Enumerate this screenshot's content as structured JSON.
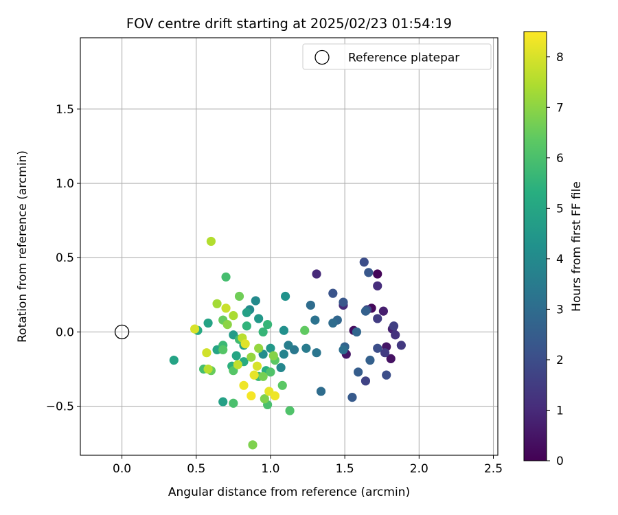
{
  "chart_data": {
    "type": "scatter",
    "title": "FOV centre drift starting at 2025/02/23 01:54:19",
    "xlabel": "Angular distance from reference (arcmin)",
    "ylabel": "Rotation from reference (arcmin)",
    "xlim": [
      -0.28,
      2.53
    ],
    "ylim": [
      -0.83,
      1.98
    ],
    "xticks": [
      0.0,
      0.5,
      1.0,
      1.5,
      2.0,
      2.5
    ],
    "xtick_labels": [
      "0.0",
      "0.5",
      "1.0",
      "1.5",
      "2.0",
      "2.5"
    ],
    "yticks": [
      -0.5,
      0.0,
      0.5,
      1.0,
      1.5
    ],
    "ytick_labels": [
      "−0.5",
      "0.0",
      "0.5",
      "1.0",
      "1.5"
    ],
    "grid": true,
    "legend": {
      "position": "top-right",
      "entries": [
        {
          "label": "Reference platepar",
          "marker": "open-circle"
        }
      ]
    },
    "reference_point": {
      "x": 0.0,
      "y": 0.0
    },
    "colorbar": {
      "label": "Hours from first FF file",
      "range": [
        0,
        8.5
      ],
      "ticks": [
        0,
        1,
        2,
        3,
        4,
        5,
        6,
        7,
        8
      ],
      "tick_labels": [
        "0",
        "1",
        "2",
        "3",
        "4",
        "5",
        "6",
        "7",
        "8"
      ],
      "colormap": "viridis"
    },
    "points": [
      {
        "x": 1.72,
        "y": 0.39,
        "h": 0.1
      },
      {
        "x": 1.68,
        "y": 0.16,
        "h": 0.2
      },
      {
        "x": 1.56,
        "y": 0.01,
        "h": 0.3
      },
      {
        "x": 1.81,
        "y": -0.18,
        "h": 0.4
      },
      {
        "x": 1.51,
        "y": -0.15,
        "h": 0.5
      },
      {
        "x": 1.78,
        "y": -0.1,
        "h": 0.5
      },
      {
        "x": 1.76,
        "y": 0.14,
        "h": 0.7
      },
      {
        "x": 1.82,
        "y": 0.02,
        "h": 0.8
      },
      {
        "x": 1.31,
        "y": 0.39,
        "h": 1.0
      },
      {
        "x": 1.49,
        "y": 0.18,
        "h": 1.0
      },
      {
        "x": 1.72,
        "y": 0.31,
        "h": 1.1
      },
      {
        "x": 1.84,
        "y": -0.02,
        "h": 1.2
      },
      {
        "x": 1.88,
        "y": -0.09,
        "h": 1.4
      },
      {
        "x": 1.72,
        "y": 0.09,
        "h": 1.5
      },
      {
        "x": 1.77,
        "y": -0.14,
        "h": 1.5
      },
      {
        "x": 1.83,
        "y": 0.04,
        "h": 1.6
      },
      {
        "x": 1.64,
        "y": -0.33,
        "h": 1.7
      },
      {
        "x": 1.65,
        "y": 0.15,
        "h": 1.8
      },
      {
        "x": 1.63,
        "y": 0.47,
        "h": 2.0
      },
      {
        "x": 1.72,
        "y": -0.11,
        "h": 2.0
      },
      {
        "x": 1.78,
        "y": -0.29,
        "h": 2.0
      },
      {
        "x": 1.42,
        "y": 0.26,
        "h": 2.2
      },
      {
        "x": 1.49,
        "y": 0.2,
        "h": 2.3
      },
      {
        "x": 1.66,
        "y": 0.4,
        "h": 2.3
      },
      {
        "x": 1.55,
        "y": -0.44,
        "h": 2.4
      },
      {
        "x": 1.59,
        "y": -0.27,
        "h": 2.5
      },
      {
        "x": 1.64,
        "y": 0.14,
        "h": 2.6
      },
      {
        "x": 1.67,
        "y": -0.19,
        "h": 2.6
      },
      {
        "x": 1.5,
        "y": -0.1,
        "h": 2.7
      },
      {
        "x": 1.45,
        "y": 0.08,
        "h": 2.8
      },
      {
        "x": 1.58,
        "y": 0.0,
        "h": 2.8
      },
      {
        "x": 1.34,
        "y": -0.4,
        "h": 3.0
      },
      {
        "x": 1.27,
        "y": 0.18,
        "h": 3.0
      },
      {
        "x": 1.42,
        "y": 0.06,
        "h": 3.0
      },
      {
        "x": 1.49,
        "y": -0.12,
        "h": 3.1
      },
      {
        "x": 1.3,
        "y": 0.08,
        "h": 3.2
      },
      {
        "x": 1.31,
        "y": -0.14,
        "h": 3.3
      },
      {
        "x": 1.16,
        "y": -0.12,
        "h": 3.4
      },
      {
        "x": 1.24,
        "y": -0.11,
        "h": 3.5
      },
      {
        "x": 1.12,
        "y": -0.09,
        "h": 3.6
      },
      {
        "x": 1.09,
        "y": -0.15,
        "h": 3.8
      },
      {
        "x": 1.07,
        "y": -0.24,
        "h": 3.9
      },
      {
        "x": 0.9,
        "y": 0.21,
        "h": 4.0
      },
      {
        "x": 0.86,
        "y": 0.15,
        "h": 4.0
      },
      {
        "x": 0.95,
        "y": -0.15,
        "h": 4.1
      },
      {
        "x": 1.09,
        "y": 0.01,
        "h": 4.2
      },
      {
        "x": 1.1,
        "y": 0.24,
        "h": 4.3
      },
      {
        "x": 0.92,
        "y": 0.09,
        "h": 4.5
      },
      {
        "x": 1.0,
        "y": -0.11,
        "h": 4.5
      },
      {
        "x": 0.75,
        "y": -0.02,
        "h": 4.6
      },
      {
        "x": 0.82,
        "y": -0.09,
        "h": 4.7
      },
      {
        "x": 0.84,
        "y": 0.13,
        "h": 4.8
      },
      {
        "x": 0.68,
        "y": -0.47,
        "h": 4.8
      },
      {
        "x": 0.35,
        "y": -0.19,
        "h": 4.9
      },
      {
        "x": 0.58,
        "y": 0.06,
        "h": 4.9
      },
      {
        "x": 0.64,
        "y": -0.12,
        "h": 5.0
      },
      {
        "x": 0.77,
        "y": -0.16,
        "h": 5.0
      },
      {
        "x": 0.51,
        "y": 0.01,
        "h": 5.1
      },
      {
        "x": 0.82,
        "y": -0.2,
        "h": 5.2
      },
      {
        "x": 0.97,
        "y": -0.26,
        "h": 5.3
      },
      {
        "x": 0.74,
        "y": -0.23,
        "h": 5.4
      },
      {
        "x": 0.84,
        "y": 0.04,
        "h": 5.5
      },
      {
        "x": 0.98,
        "y": 0.05,
        "h": 5.6
      },
      {
        "x": 0.95,
        "y": 0.0,
        "h": 5.6
      },
      {
        "x": 0.92,
        "y": -0.3,
        "h": 5.7
      },
      {
        "x": 0.68,
        "y": -0.09,
        "h": 5.7
      },
      {
        "x": 0.79,
        "y": -0.05,
        "h": 5.8
      },
      {
        "x": 0.55,
        "y": -0.25,
        "h": 5.9
      },
      {
        "x": 0.7,
        "y": 0.37,
        "h": 5.9
      },
      {
        "x": 0.75,
        "y": -0.48,
        "h": 6.0
      },
      {
        "x": 0.98,
        "y": -0.49,
        "h": 6.0
      },
      {
        "x": 1.0,
        "y": -0.27,
        "h": 6.1
      },
      {
        "x": 1.13,
        "y": -0.53,
        "h": 6.1
      },
      {
        "x": 0.68,
        "y": -0.12,
        "h": 6.2
      },
      {
        "x": 0.75,
        "y": -0.26,
        "h": 6.2
      },
      {
        "x": 1.08,
        "y": -0.36,
        "h": 6.3
      },
      {
        "x": 1.03,
        "y": -0.19,
        "h": 6.3
      },
      {
        "x": 1.23,
        "y": 0.01,
        "h": 6.4
      },
      {
        "x": 0.6,
        "y": -0.26,
        "h": 6.5
      },
      {
        "x": 0.68,
        "y": 0.08,
        "h": 6.5
      },
      {
        "x": 0.79,
        "y": 0.24,
        "h": 6.6
      },
      {
        "x": 0.95,
        "y": -0.3,
        "h": 6.7
      },
      {
        "x": 0.96,
        "y": -0.45,
        "h": 6.8
      },
      {
        "x": 0.88,
        "y": -0.76,
        "h": 6.8
      },
      {
        "x": 1.02,
        "y": -0.16,
        "h": 6.9
      },
      {
        "x": 0.71,
        "y": 0.05,
        "h": 7.0
      },
      {
        "x": 0.92,
        "y": -0.11,
        "h": 7.1
      },
      {
        "x": 0.87,
        "y": -0.17,
        "h": 7.1
      },
      {
        "x": 0.64,
        "y": 0.19,
        "h": 7.3
      },
      {
        "x": 0.75,
        "y": 0.11,
        "h": 7.4
      },
      {
        "x": 0.6,
        "y": 0.61,
        "h": 7.5
      },
      {
        "x": 0.58,
        "y": -0.25,
        "h": 7.6
      },
      {
        "x": 0.81,
        "y": -0.04,
        "h": 7.6
      },
      {
        "x": 0.78,
        "y": -0.22,
        "h": 7.7
      },
      {
        "x": 0.7,
        "y": 0.16,
        "h": 7.8
      },
      {
        "x": 0.57,
        "y": -0.14,
        "h": 7.9
      },
      {
        "x": 0.49,
        "y": 0.02,
        "h": 8.0
      },
      {
        "x": 0.91,
        "y": -0.23,
        "h": 8.0
      },
      {
        "x": 0.83,
        "y": -0.08,
        "h": 8.1
      },
      {
        "x": 0.89,
        "y": -0.29,
        "h": 8.2
      },
      {
        "x": 0.99,
        "y": -0.4,
        "h": 8.2
      },
      {
        "x": 1.03,
        "y": -0.43,
        "h": 8.3
      },
      {
        "x": 0.82,
        "y": -0.36,
        "h": 8.3
      },
      {
        "x": 0.87,
        "y": -0.43,
        "h": 8.4
      }
    ]
  }
}
